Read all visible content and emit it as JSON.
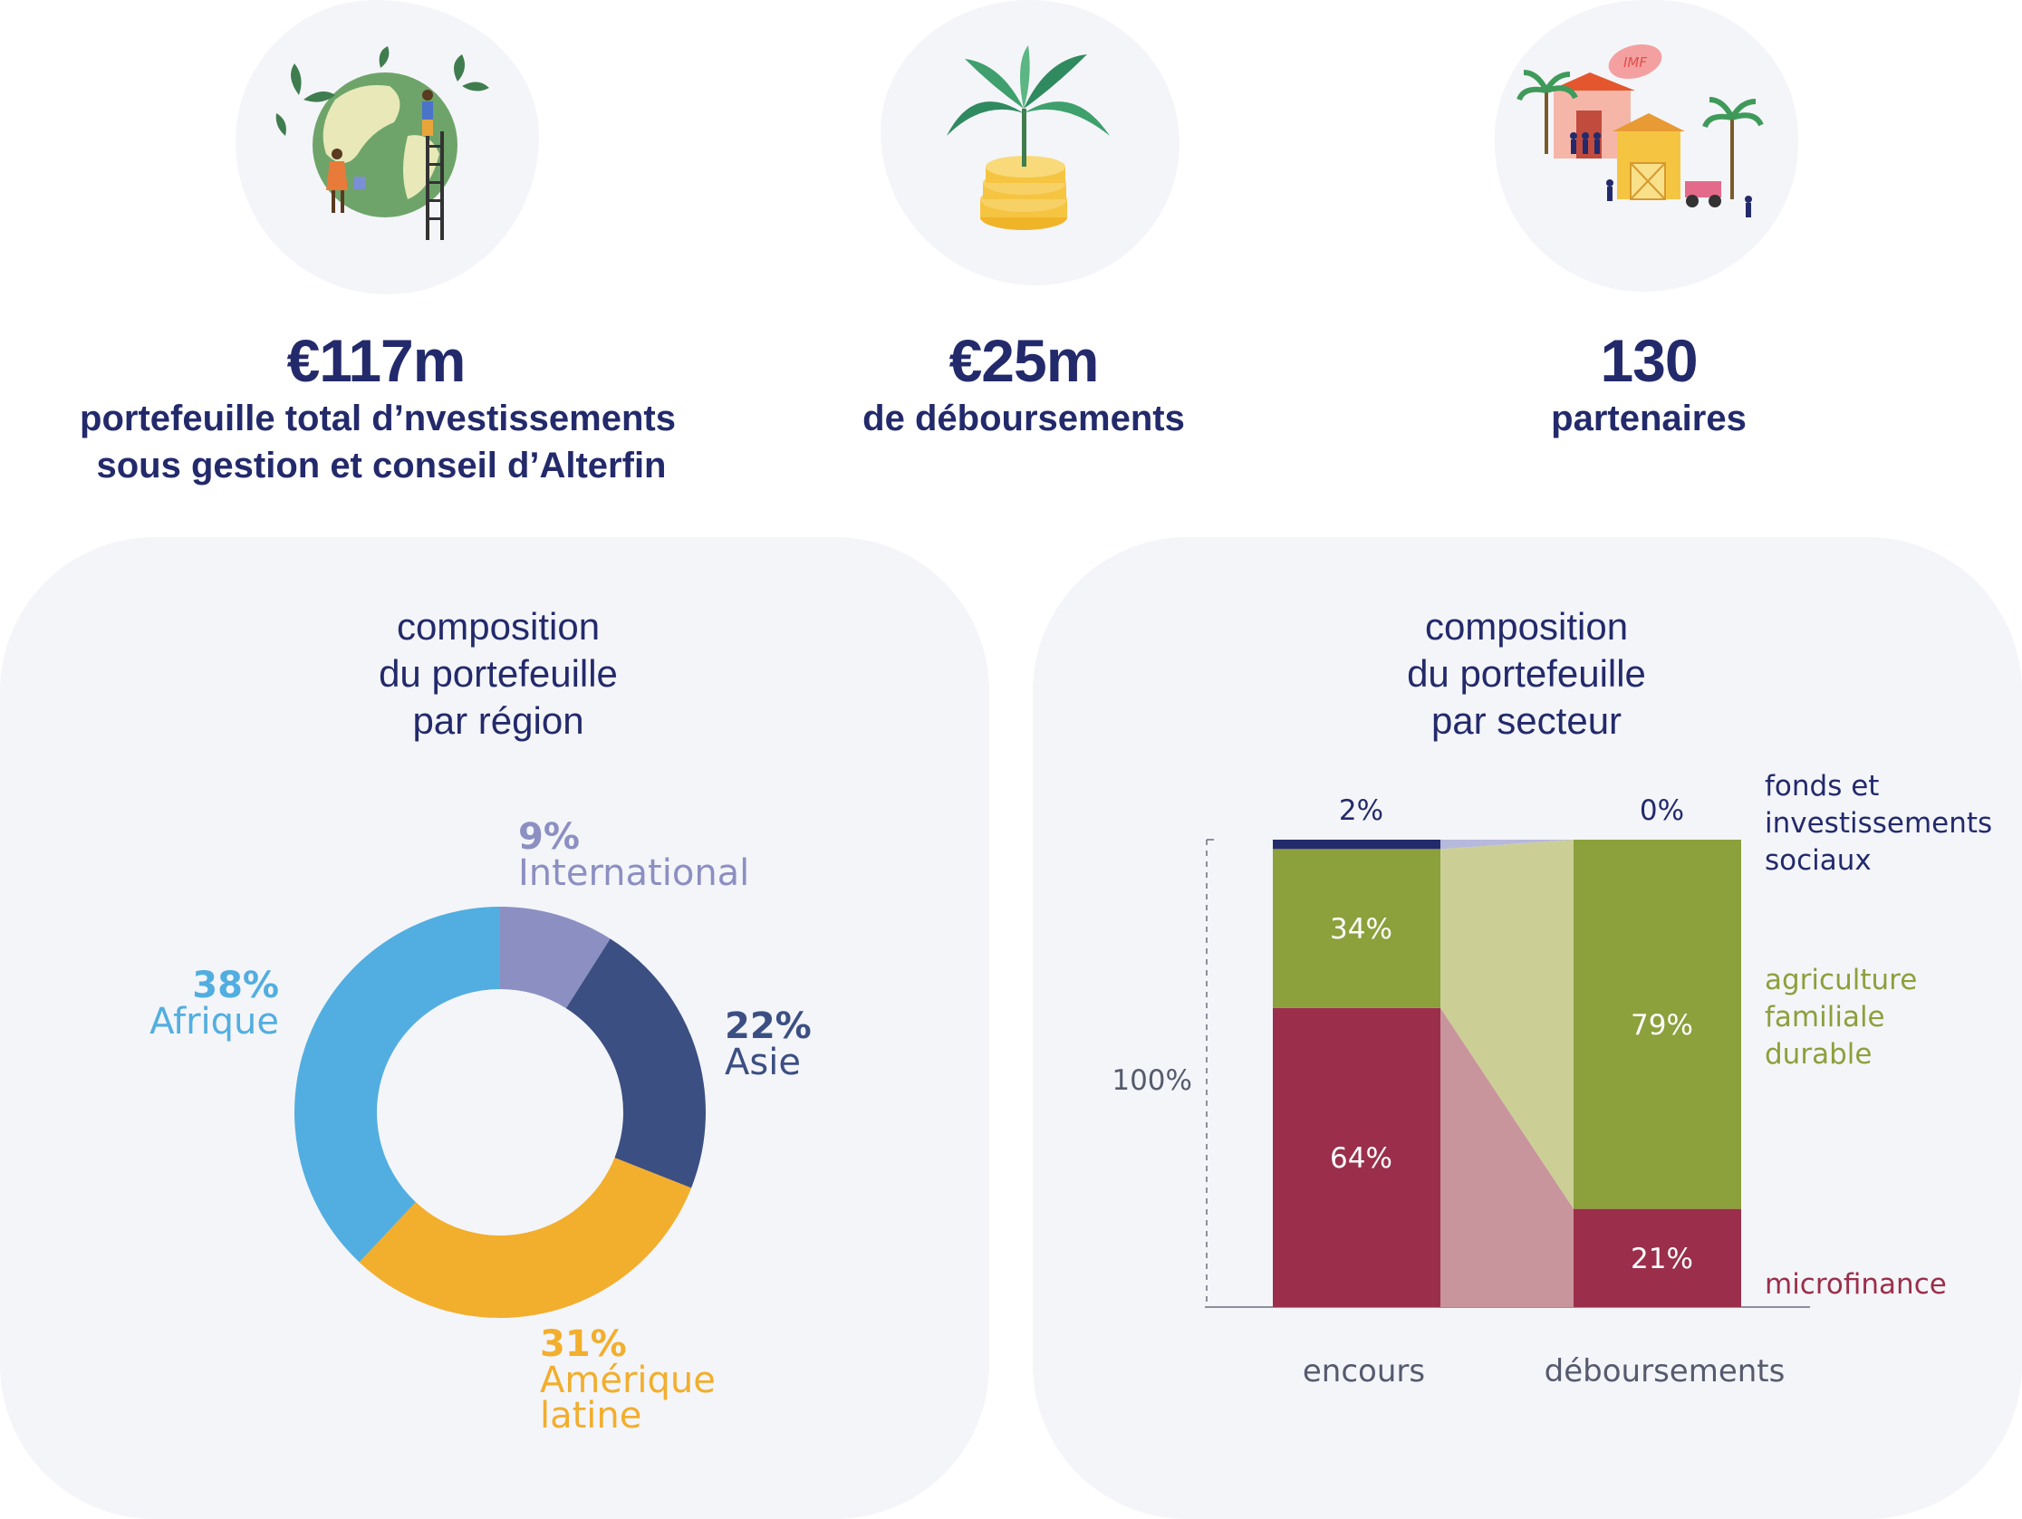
{
  "kpis": [
    {
      "value": "€117m",
      "line1": "portefeuille total d’nvestissements",
      "line2": "sous gestion et conseil d’Alterfin"
    },
    {
      "value": "€25m",
      "line1": "de déboursements"
    },
    {
      "value": "130",
      "line1": "partenaires"
    }
  ],
  "illustrations": {
    "imf_sign": "IMF"
  },
  "colors": {
    "navy": "#232a6b",
    "international": "#8c8fc1",
    "asie": "#3b4f82",
    "amerique_latine": "#f2ae2d",
    "afrique": "#52aee0",
    "fonds": "#232a6b",
    "agriculture": "#8ca03c",
    "microfinance": "#9b2f4b"
  },
  "chart_data": [
    {
      "type": "pie",
      "title_lines": [
        "composition",
        "du portefeuille",
        "par région"
      ],
      "slices": [
        {
          "name": "International",
          "value": 9,
          "label": "9%",
          "color": "#8c8fc1"
        },
        {
          "name": "Asie",
          "value": 22,
          "label": "22%",
          "color": "#3b4f82"
        },
        {
          "name": "Amérique latine",
          "name_lines": [
            "Amérique",
            "latine"
          ],
          "value": 31,
          "label": "31%",
          "color": "#f2ae2d"
        },
        {
          "name": "Afrique",
          "value": 38,
          "label": "38%",
          "color": "#52aee0"
        }
      ]
    },
    {
      "type": "bar",
      "stacked": true,
      "title_lines": [
        "composition",
        "du portefeuille",
        "par secteur"
      ],
      "categories": [
        "encours",
        "déboursements"
      ],
      "y_label": "100%",
      "ylim": [
        0,
        100
      ],
      "series": [
        {
          "name": "microfinance",
          "name_lines": [
            "microfinance"
          ],
          "values": [
            64,
            21
          ],
          "labels": [
            "64%",
            "21%"
          ],
          "color": "#9b2f4b",
          "flow_color": "#c9959d"
        },
        {
          "name": "agriculture familiale durable",
          "name_lines": [
            "agriculture",
            "familiale",
            "durable"
          ],
          "values": [
            34,
            79
          ],
          "labels": [
            "34%",
            "79%"
          ],
          "color": "#8ca03c",
          "flow_color": "#cbcf96"
        },
        {
          "name": "fonds et investissements sociaux",
          "name_lines": [
            "fonds et",
            "investissements",
            "sociaux"
          ],
          "values": [
            2,
            0
          ],
          "labels": [
            "2%",
            "0%"
          ],
          "color": "#232a6b",
          "flow_color": "#b7b9dc"
        }
      ]
    }
  ]
}
